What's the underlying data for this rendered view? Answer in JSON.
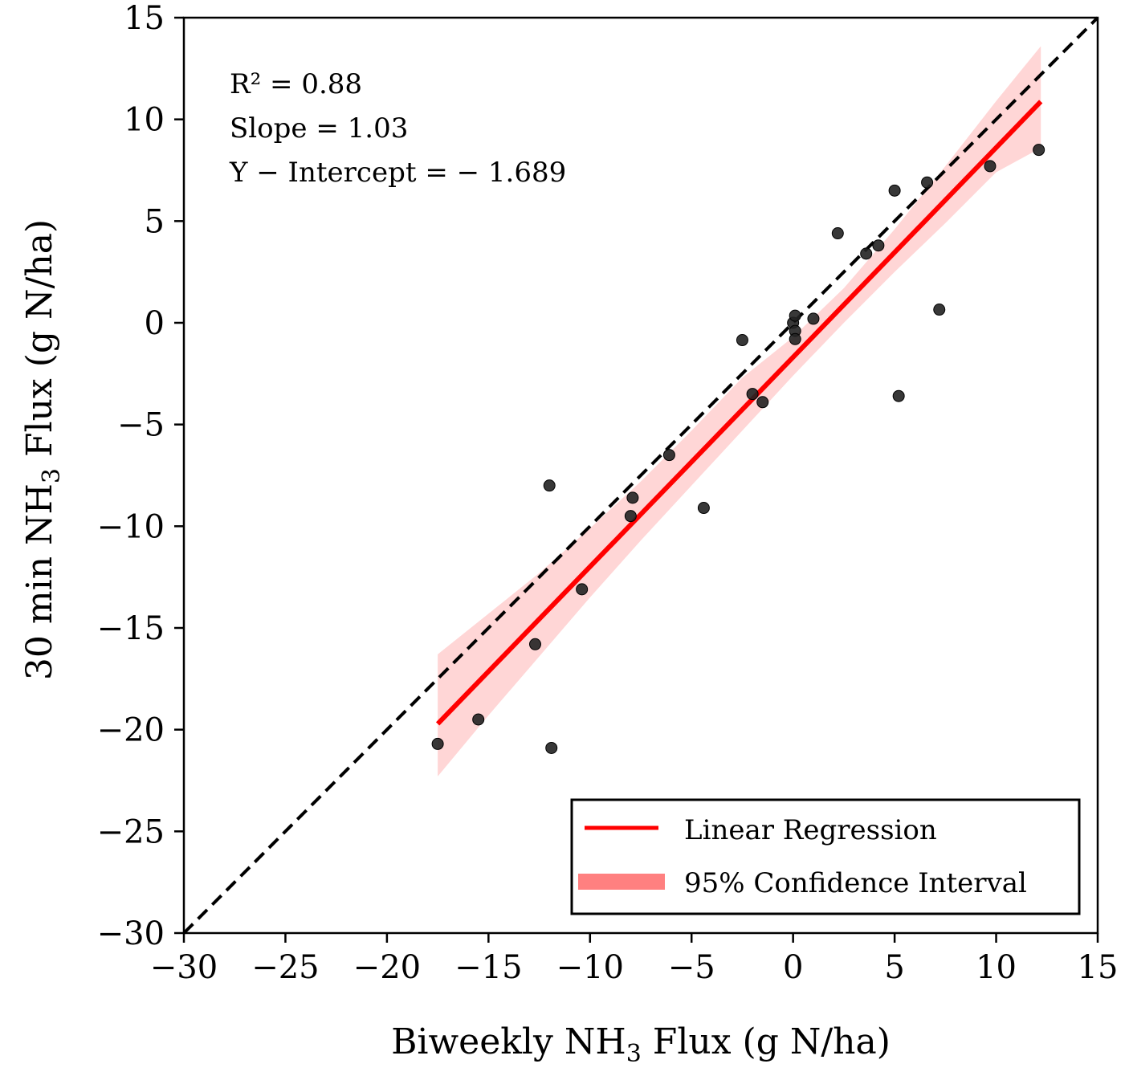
{
  "chart_data": {
    "type": "scatter",
    "xlabel_prefix": "Biweekly NH",
    "xlabel_sub": "3",
    "xlabel_suffix": " Flux (g N/ha)",
    "ylabel_prefix": "30 min NH",
    "ylabel_sub": "3",
    "ylabel_suffix": " Flux (g N/ha)",
    "xlim": [
      -30,
      15
    ],
    "ylim": [
      -30,
      15
    ],
    "xticks": [
      -30,
      -25,
      -20,
      -15,
      -10,
      -5,
      0,
      5,
      10,
      15
    ],
    "yticks": [
      -30,
      -25,
      -20,
      -15,
      -10,
      -5,
      0,
      5,
      10,
      15
    ],
    "grid": false,
    "annotations": [
      "R² = 0.88",
      "Slope = 1.03",
      "Y − Intercept =  − 1.689"
    ],
    "regression": {
      "slope": 1.03,
      "intercept": -1.689,
      "x_range": [
        -17.5,
        12.2
      ]
    },
    "confidence_band": {
      "x": [
        -17.5,
        -15,
        -12.5,
        -10,
        -7.5,
        -5,
        -2.5,
        0,
        2.5,
        5,
        7.5,
        10,
        12.2
      ],
      "lower": [
        -22.3,
        -19.3,
        -16.4,
        -13.5,
        -10.7,
        -8.0,
        -5.3,
        -2.6,
        0.0,
        2.5,
        4.9,
        7.4,
        8.6
      ],
      "upper": [
        -16.3,
        -14.3,
        -12.3,
        -10.1,
        -7.8,
        -5.3,
        -2.7,
        -0.7,
        1.7,
        4.6,
        7.7,
        10.9,
        13.6
      ]
    },
    "identity_line": {
      "from": [
        -30,
        -30
      ],
      "to": [
        15,
        15
      ],
      "style": "dashed",
      "color": "#000000"
    },
    "points": [
      [
        -17.5,
        -20.7
      ],
      [
        -15.5,
        -19.5
      ],
      [
        -12.0,
        -8.0
      ],
      [
        -11.9,
        -20.9
      ],
      [
        -12.7,
        -15.8
      ],
      [
        -10.4,
        -13.1
      ],
      [
        -7.9,
        -8.6
      ],
      [
        -8.0,
        -9.5
      ],
      [
        -6.1,
        -6.5
      ],
      [
        -4.4,
        -9.1
      ],
      [
        -2.5,
        -0.85
      ],
      [
        -2.0,
        -3.5
      ],
      [
        -1.5,
        -3.9
      ],
      [
        0.0,
        0.0
      ],
      [
        0.1,
        0.35
      ],
      [
        0.1,
        -0.4
      ],
      [
        0.1,
        -0.8
      ],
      [
        1.0,
        0.2
      ],
      [
        2.2,
        4.4
      ],
      [
        3.6,
        3.4
      ],
      [
        4.2,
        3.8
      ],
      [
        5.0,
        6.5
      ],
      [
        5.2,
        -3.6
      ],
      [
        6.6,
        6.9
      ],
      [
        7.2,
        0.65
      ],
      [
        9.7,
        7.7
      ],
      [
        12.1,
        8.5
      ]
    ],
    "legend": {
      "position": "lower-right",
      "entries": [
        {
          "label": "Linear Regression",
          "color": "#ff0000",
          "kind": "line"
        },
        {
          "label": "95% Confidence Interval",
          "color": "#ff8080",
          "kind": "band"
        }
      ]
    },
    "colors": {
      "regression": "#ff0000",
      "band": "#ffd6d6",
      "points": "#222222"
    }
  }
}
